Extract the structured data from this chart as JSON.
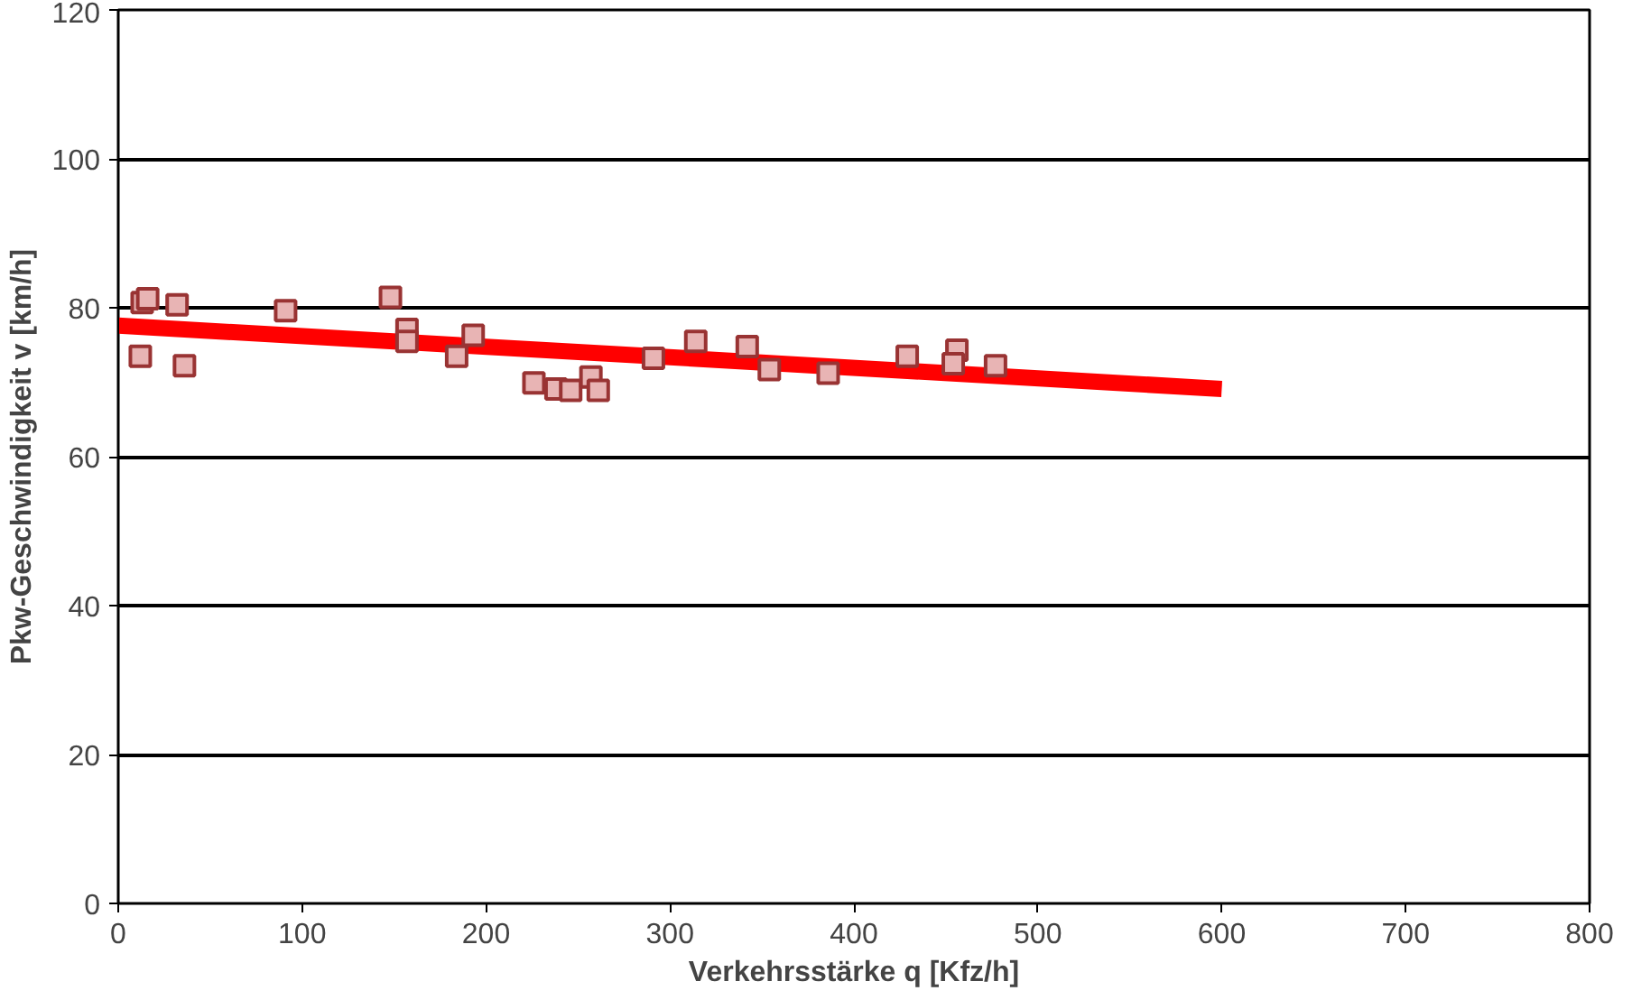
{
  "chart_data": {
    "type": "scatter",
    "xlabel": "Verkehrsstärke q [Kfz/h]",
    "ylabel": "Pkw-Geschwindigkeit v [km/h]",
    "xlim": [
      0,
      800
    ],
    "xticks": [
      0,
      100,
      200,
      300,
      400,
      500,
      600,
      700,
      800
    ],
    "ylim": [
      0,
      120
    ],
    "yticks": [
      0,
      20,
      40,
      60,
      80,
      100,
      120
    ],
    "grid": "y",
    "series": [
      {
        "marker": "square",
        "color": "#e8b4b4",
        "x": [
          12,
          13,
          16,
          32,
          36,
          91,
          148,
          157,
          157,
          184,
          193,
          226,
          238,
          246,
          257,
          261,
          291,
          314,
          342,
          354,
          386,
          429,
          456,
          454,
          477
        ],
        "values": [
          73.5,
          80.7,
          81.2,
          80.4,
          72.2,
          79.6,
          81.4,
          77.1,
          75.5,
          73.5,
          76.3,
          69.9,
          69.1,
          68.9,
          70.7,
          68.9,
          73.2,
          75.5,
          74.8,
          71.7,
          71.2,
          73.5,
          74.3,
          72.5,
          72.2
        ]
      },
      {
        "type": "line",
        "color": "#ff0000",
        "x": [
          0,
          600
        ],
        "values": [
          77.6,
          69.1
        ]
      }
    ]
  }
}
